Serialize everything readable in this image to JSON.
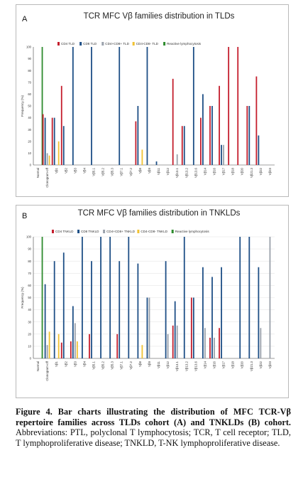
{
  "colors": {
    "cd4": "#c41e2d",
    "cd8": "#1e4f86",
    "dp": "#9aa1ab",
    "dn": "#f1c232",
    "reactive": "#2e8b2e",
    "axis": "#444444",
    "grid": "#e6e6e6"
  },
  "caption": {
    "lead": "Figure 4. Bar charts illustrating the distribution of MFC TCR-Vβ repertoire families across TLDs cohort (A) and TNKLDs (B) cohort.",
    "rest": " Abbreviations: PTL, polyclonal T lymphocytosis; TCR, T cell receptor; TLD, T lymphoproliferative disease; TNKLD, T-NK lymphoproliferative disease."
  },
  "chart_data": [
    {
      "type": "bar",
      "panel": "A",
      "title": "TCR MFC Vβ families distribution in TLDs",
      "ylabel": "Frequency (%)",
      "xlabel": "",
      "ylim": [
        0,
        100
      ],
      "yticks": [
        0,
        10,
        20,
        30,
        40,
        50,
        60,
        70,
        80,
        90,
        100
      ],
      "grid": false,
      "legend_position": "top",
      "categories": [
        "Normal",
        "Clonogram-off",
        "Vβ1",
        "Vβ2",
        "Vβ3",
        "Vβ4",
        "Vβ5.1",
        "Vβ5.2",
        "Vβ5.3",
        "Vβ7.1",
        "Vβ7.2",
        "Vβ8",
        "Vβ9",
        "Vβ11",
        "Vβ12",
        "Vβ13.1",
        "Vβ13.2",
        "Vβ13.6",
        "Vβ14",
        "Vβ16",
        "Vβ17",
        "Vβ18",
        "Vβ20",
        "Vβ21.3",
        "Vβ22",
        "Vβ23"
      ],
      "series": [
        {
          "name": "CD4 TLD",
          "color_key": "cd4",
          "values": [
            0,
            43,
            40,
            67,
            0,
            0,
            0,
            0,
            0,
            0,
            0,
            37,
            0,
            0,
            0,
            73,
            33,
            0,
            40,
            50,
            67,
            100,
            100,
            50,
            75,
            0
          ]
        },
        {
          "name": "CD8 TLD",
          "color_key": "cd8",
          "values": [
            0,
            40,
            40,
            33,
            100,
            0,
            100,
            0,
            0,
            100,
            0,
            50,
            100,
            3,
            0,
            0,
            33,
            100,
            60,
            50,
            17,
            0,
            0,
            50,
            25,
            0
          ]
        },
        {
          "name": "CD4+CD8+ TLD",
          "color_key": "dp",
          "values": [
            0,
            10,
            0,
            0,
            0,
            0,
            0,
            0,
            0,
            0,
            0,
            0,
            0,
            0,
            0,
            9,
            0,
            0,
            0,
            0,
            17,
            0,
            0,
            0,
            0,
            0
          ]
        },
        {
          "name": "CD4-CD8- TLD",
          "color_key": "dn",
          "values": [
            0,
            8,
            20,
            0,
            0,
            0,
            0,
            0,
            0,
            0,
            0,
            13,
            0,
            0,
            0,
            0,
            0,
            0,
            0,
            0,
            0,
            0,
            0,
            0,
            0,
            0
          ]
        },
        {
          "name": "Reactive lymphocytosis",
          "color_key": "reactive",
          "values": [
            100,
            0,
            0,
            0,
            0,
            0,
            0,
            0,
            0,
            0,
            0,
            0,
            0,
            0,
            0,
            0,
            0,
            0,
            0,
            0,
            0,
            0,
            0,
            0,
            0,
            0
          ]
        }
      ]
    },
    {
      "type": "bar",
      "panel": "B",
      "title": "TCR MFC Vβ families distribution in TNKLDs",
      "ylabel": "Frequency (%)",
      "xlabel": "",
      "ylim": [
        0,
        100
      ],
      "yticks": [
        0,
        10,
        20,
        30,
        40,
        50,
        60,
        70,
        80,
        90,
        100
      ],
      "grid": true,
      "legend_position": "top",
      "categories": [
        "Normal",
        "Clonogram-off",
        "Vβ1",
        "Vβ2",
        "Vβ3",
        "Vβ4",
        "Vβ5.1",
        "Vβ5.2",
        "Vβ5.3",
        "Vβ7.1",
        "Vβ7.2",
        "Vβ8",
        "Vβ9",
        "Vβ11",
        "Vβ12",
        "Vβ13.1",
        "Vβ13.2",
        "Vβ13.6",
        "Vβ14",
        "Vβ16",
        "Vβ17",
        "Vβ18",
        "Vβ20",
        "Vβ21.3",
        "Vβ22",
        "Vβ23"
      ],
      "series": [
        {
          "name": "CD4 TNKLD",
          "color_key": "cd4",
          "values": [
            0,
            0,
            0,
            13,
            14,
            0,
            20,
            0,
            0,
            20,
            0,
            0,
            0,
            0,
            0,
            27,
            0,
            50,
            0,
            17,
            25,
            0,
            0,
            0,
            0,
            0
          ]
        },
        {
          "name": "CD8 TNKLD",
          "color_key": "cd8",
          "values": [
            0,
            61,
            80,
            87,
            43,
            100,
            80,
            100,
            100,
            80,
            100,
            78,
            50,
            0,
            80,
            47,
            100,
            50,
            75,
            67,
            75,
            0,
            100,
            100,
            75,
            0
          ]
        },
        {
          "name": "CD4+CD8+ TNKLD",
          "color_key": "dp",
          "values": [
            0,
            11,
            0,
            0,
            29,
            0,
            0,
            0,
            0,
            0,
            0,
            0,
            50,
            0,
            20,
            27,
            0,
            0,
            25,
            17,
            0,
            0,
            0,
            0,
            25,
            100
          ]
        },
        {
          "name": "CD4-CD8- TNKLD",
          "color_key": "dn",
          "values": [
            0,
            22,
            20,
            0,
            14,
            0,
            0,
            0,
            0,
            0,
            0,
            11,
            0,
            0,
            0,
            0,
            0,
            0,
            0,
            0,
            0,
            0,
            0,
            0,
            0,
            0
          ]
        },
        {
          "name": "Reactive lymphocytosis",
          "color_key": "reactive",
          "values": [
            100,
            0,
            0,
            0,
            0,
            0,
            0,
            0,
            0,
            0,
            0,
            0,
            0,
            0,
            0,
            0,
            0,
            0,
            0,
            0,
            0,
            0,
            0,
            0,
            0,
            0
          ]
        }
      ]
    }
  ]
}
